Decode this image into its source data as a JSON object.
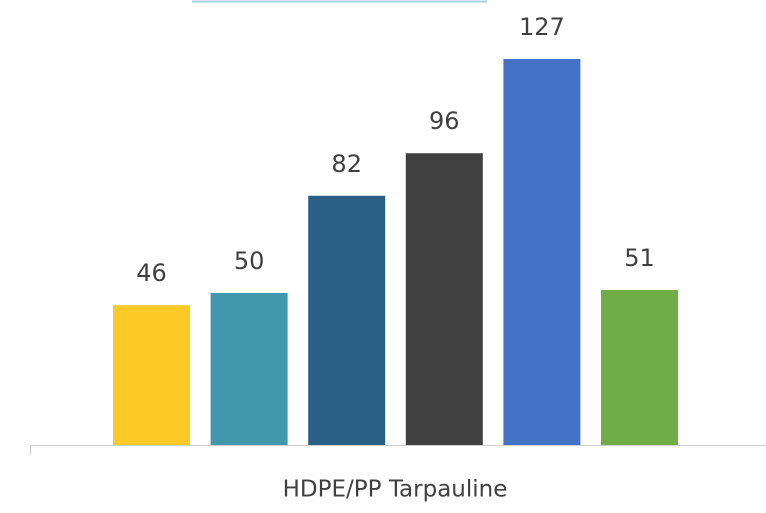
{
  "chart_data": {
    "type": "bar",
    "categories": [
      "HDPE/PP Tarpauline"
    ],
    "series": [
      {
        "color": "#fdc927",
        "values": [
          46
        ]
      },
      {
        "color": "#4197ab",
        "values": [
          50
        ]
      },
      {
        "color": "#2a5f86",
        "values": [
          82
        ]
      },
      {
        "color": "#404040",
        "values": [
          96
        ]
      },
      {
        "color": "#4473c6",
        "values": [
          127
        ]
      },
      {
        "color": "#70ac47",
        "values": [
          51
        ]
      }
    ]
  }
}
